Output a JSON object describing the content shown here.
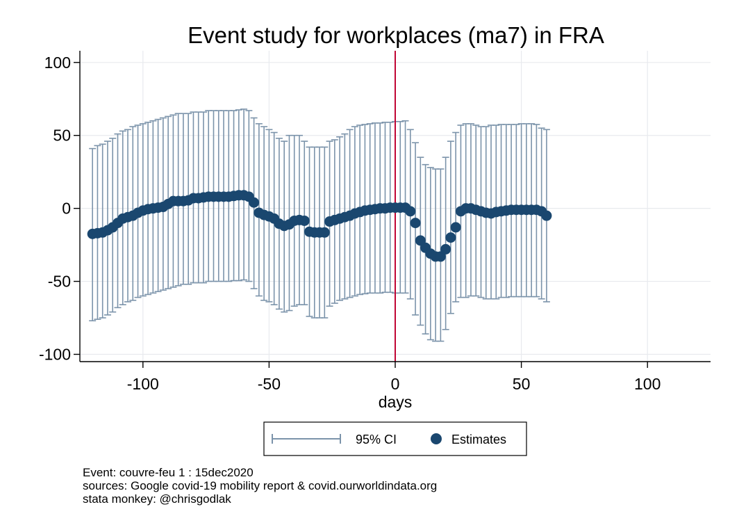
{
  "chart_data": {
    "type": "scatter",
    "title": "Event study for workplaces (ma7) in FRA",
    "xlabel": "days",
    "ylabel": "",
    "xlim": [
      -125,
      125
    ],
    "ylim": [
      -105,
      108
    ],
    "x_ticks": [
      -100,
      -50,
      0,
      50,
      100
    ],
    "y_ticks": [
      100,
      50,
      0,
      -50,
      -100
    ],
    "grid": true,
    "event_line": {
      "x": 0,
      "color": "#c10534"
    },
    "legend": {
      "placement": "bottom",
      "entries": [
        {
          "label": "95% CI",
          "marker": "capped-range"
        },
        {
          "label": "Estimates",
          "marker": "filled-circle"
        }
      ]
    },
    "colors": {
      "ci": "#7b93aa",
      "estimates": "#1a476f",
      "grid": "#e8eaee"
    },
    "series": [
      {
        "name": "Estimates",
        "x": [
          -120,
          -118,
          -116,
          -114,
          -112,
          -110,
          -108,
          -106,
          -104,
          -102,
          -100,
          -98,
          -96,
          -94,
          -92,
          -90,
          -88,
          -86,
          -84,
          -82,
          -80,
          -78,
          -76,
          -74,
          -72,
          -70,
          -68,
          -66,
          -64,
          -62,
          -60,
          -58,
          -56,
          -54,
          -52,
          -50,
          -48,
          -46,
          -44,
          -42,
          -40,
          -38,
          -36,
          -34,
          -32,
          -30,
          -28,
          -26,
          -24,
          -22,
          -20,
          -18,
          -16,
          -14,
          -12,
          -10,
          -8,
          -6,
          -4,
          -2,
          0,
          2,
          4,
          6,
          8,
          10,
          12,
          14,
          16,
          18,
          20,
          22,
          24,
          26,
          28,
          30,
          32,
          34,
          36,
          38,
          40,
          42,
          44,
          46,
          48,
          50,
          52,
          54,
          56,
          58,
          60
        ],
        "y": [
          -17.5,
          -17,
          -16.5,
          -15,
          -13,
          -10,
          -7,
          -6,
          -5,
          -3,
          -1.5,
          -0.5,
          0,
          0.5,
          1,
          3,
          5,
          5,
          5,
          5.5,
          7,
          7,
          7.5,
          8,
          8,
          8,
          8,
          8,
          8.5,
          9,
          9,
          8,
          4,
          -3,
          -4.5,
          -5.5,
          -7,
          -10.5,
          -12,
          -11,
          -8.5,
          -8,
          -8.5,
          -16,
          -16.5,
          -16.5,
          -16.5,
          -9,
          -8,
          -7,
          -6,
          -5,
          -3.5,
          -2.5,
          -1.5,
          -1,
          -0.5,
          0,
          0,
          0.5,
          0.5,
          0.5,
          0.5,
          -2,
          -10,
          -22,
          -27,
          -31,
          -33,
          -33,
          -28,
          -20,
          -13,
          -2,
          0,
          0,
          -1,
          -2,
          -3,
          -3.5,
          -2.5,
          -2,
          -1.5,
          -1,
          -1,
          -1,
          -1,
          -1,
          -1,
          -2,
          -5
        ],
        "ci_upper": [
          41,
          43,
          44,
          46,
          48,
          51,
          53,
          54,
          56,
          57,
          58,
          59,
          60,
          61,
          62,
          63,
          64,
          65,
          65,
          65,
          66,
          66,
          66,
          67,
          67,
          67,
          67,
          67,
          67,
          67.5,
          68,
          67,
          62,
          58,
          56,
          54,
          52,
          48,
          46,
          50,
          50,
          50,
          46,
          42,
          42,
          42,
          42,
          46,
          47,
          49,
          51,
          54,
          56,
          57,
          57.5,
          58,
          58.5,
          58.5,
          59,
          59,
          59.5,
          59.5,
          60,
          54,
          45,
          35,
          30,
          28,
          27,
          27,
          35,
          46,
          52,
          57,
          58,
          58,
          57,
          56,
          56,
          57,
          57,
          57.5,
          57.5,
          57.5,
          57.5,
          58,
          58,
          58,
          57.5,
          55,
          54
        ],
        "ci_lower": [
          -77,
          -76,
          -75,
          -73,
          -71,
          -68,
          -66,
          -64,
          -63,
          -61,
          -60,
          -59,
          -58,
          -57,
          -56,
          -55,
          -54,
          -53,
          -52,
          -52,
          -51,
          -51,
          -51,
          -50,
          -50,
          -50,
          -50,
          -50,
          -49.5,
          -49.5,
          -49,
          -50,
          -55,
          -60,
          -63,
          -64,
          -66,
          -69,
          -71,
          -70,
          -67,
          -66,
          -66,
          -74,
          -75,
          -75,
          -75,
          -67,
          -65,
          -63,
          -62,
          -61,
          -60,
          -59,
          -58.5,
          -58,
          -58,
          -58,
          -57.5,
          -57.5,
          -58,
          -58,
          -58,
          -62,
          -73,
          -80,
          -86,
          -90,
          -91,
          -91,
          -83,
          -72,
          -64,
          -61,
          -61,
          -60,
          -60,
          -61,
          -62,
          -62,
          -62,
          -61,
          -61,
          -60.5,
          -60.5,
          -60.5,
          -60.5,
          -60.5,
          -60.5,
          -62,
          -64
        ]
      }
    ],
    "notes": [
      "Event: couvre-feu 1 : 15dec2020",
      "sources: Google covid-19 mobility report & covid.ourworldindata.org",
      "stata monkey: @chrisgodlak"
    ]
  }
}
